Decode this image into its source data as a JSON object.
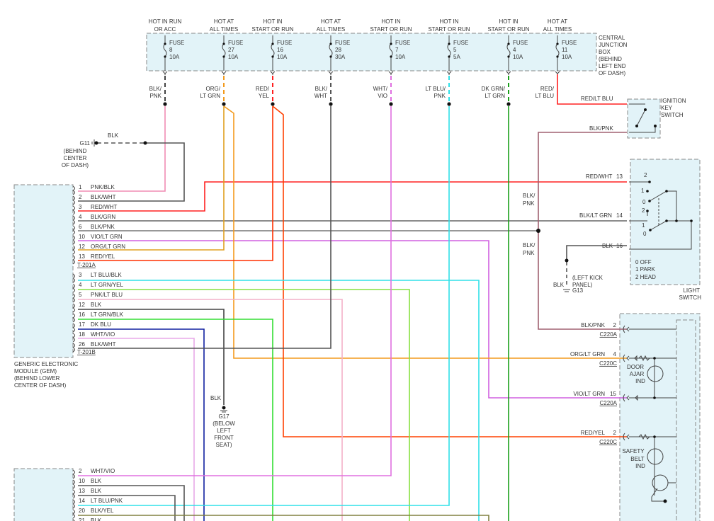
{
  "fuses": [
    {
      "header": [
        "HOT IN RUN",
        "OR ACC"
      ],
      "label": "FUSE",
      "num": "8",
      "amps": "10A",
      "wire": [
        "BLK/",
        "PNK"
      ],
      "color": "#444444"
    },
    {
      "header": [
        "HOT AT",
        "ALL TIMES"
      ],
      "label": "FUSE",
      "num": "27",
      "amps": "10A",
      "wire": [
        "ORG/",
        "LT GRN"
      ],
      "color": "#f39a1d"
    },
    {
      "header": [
        "HOT IN",
        "START OR RUN"
      ],
      "label": "FUSE",
      "num": "16",
      "amps": "10A",
      "wire": [
        "RED/",
        "YEL"
      ],
      "color": "#ff2020"
    },
    {
      "header": [
        "HOT AT",
        "ALL TIMES"
      ],
      "label": "FUSE",
      "num": "28",
      "amps": "30A",
      "wire": [
        "BLK/",
        "WHT"
      ],
      "color": "#555555"
    },
    {
      "header": [
        "HOT IN",
        "START OR RUN"
      ],
      "label": "FUSE",
      "num": "7",
      "amps": "10A",
      "wire": [
        "WHT/",
        "VIO"
      ],
      "color": "#e070e0"
    },
    {
      "header": [
        "HOT IN",
        "START OR RUN"
      ],
      "label": "FUSE",
      "num": "5",
      "amps": "5A",
      "wire": [
        "LT BLU/",
        "PNK"
      ],
      "color": "#30e0e8"
    },
    {
      "header": [
        "HOT IN",
        "START OR RUN"
      ],
      "label": "FUSE",
      "num": "4",
      "amps": "10A",
      "wire": [
        "DK GRN/",
        "LT GRN"
      ],
      "color": "#1aa01a"
    },
    {
      "header": [
        "HOT AT",
        "ALL TIMES"
      ],
      "label": "FUSE",
      "num": "11",
      "amps": "10A",
      "wire": [
        "RED/",
        "LT BLU"
      ],
      "color": "#ff2020"
    }
  ],
  "central_junction_box": [
    "CENTRAL",
    "JUNCTION",
    "BOX",
    "(BEHIND",
    "LEFT END",
    "OF DASH)"
  ],
  "ground_g11": {
    "wire": "BLK",
    "id": "G11",
    "location": [
      "(BEHIND",
      "CENTER",
      "OF DASH)"
    ]
  },
  "gem": {
    "name": [
      "GENERIC ELECTRONIC",
      "MODULE (GEM)",
      "(BEHIND LOWER",
      "CENTER OF DASH)"
    ],
    "connector_a": "T-201A",
    "connector_b": "T-201B",
    "pins_a": [
      {
        "pin": "1",
        "wire": "PNK/BLK"
      },
      {
        "pin": "2",
        "wire": "BLK/WHT"
      },
      {
        "pin": "3",
        "wire": "RED/WHT"
      },
      {
        "pin": "4",
        "wire": "BLK/GRN"
      },
      {
        "pin": "6",
        "wire": "BLK/PNK"
      },
      {
        "pin": "10",
        "wire": "VIO/LT GRN"
      },
      {
        "pin": "12",
        "wire": "ORG/LT GRN"
      },
      {
        "pin": "13",
        "wire": "RED/YEL"
      }
    ],
    "pins_b": [
      {
        "pin": "3",
        "wire": "LT BLU/BLK"
      },
      {
        "pin": "4",
        "wire": "LT GRN/YEL"
      },
      {
        "pin": "5",
        "wire": "PNK/LT BLU"
      },
      {
        "pin": "12",
        "wire": "BLK"
      },
      {
        "pin": "16",
        "wire": "LT GRN/BLK"
      },
      {
        "pin": "17",
        "wire": "DK BLU"
      },
      {
        "pin": "18",
        "wire": "WHT/VIO"
      },
      {
        "pin": "26",
        "wire": "BLK/WHT"
      }
    ],
    "pins_lower": [
      {
        "pin": "2",
        "wire": "WHT/VIO"
      },
      {
        "pin": "10",
        "wire": "BLK"
      },
      {
        "pin": "13",
        "wire": "BLK"
      },
      {
        "pin": "14",
        "wire": "LT BLU/PNK"
      },
      {
        "pin": "20",
        "wire": "BLK/YEL"
      },
      {
        "pin": "21",
        "wire": "BLK"
      }
    ]
  },
  "ground_g17": {
    "wire": "BLK",
    "id": "G17",
    "location": [
      "(BELOW",
      "LEFT",
      "FRONT",
      "SEAT)"
    ]
  },
  "ignition_switch": {
    "name": [
      "IGNITION",
      "KEY",
      "SWITCH"
    ],
    "wire_in": "RED/LT BLU",
    "wire_out": "BLK/PNK"
  },
  "splice_labels": {
    "upper": [
      "BLK/",
      "PNK"
    ],
    "lower": [
      "BLK/",
      "PNK"
    ]
  },
  "light_switch": {
    "name": [
      "LIGHT",
      "SWITCH"
    ],
    "pins": [
      {
        "wire": "RED/WHT",
        "pin": "13"
      },
      {
        "wire": "BLK/LT GRN",
        "pin": "14"
      },
      {
        "wire": "BLK",
        "pin": "16"
      }
    ],
    "positions_upper": [
      "2",
      "1",
      "0"
    ],
    "positions_lower": [
      "2",
      "1",
      "0"
    ],
    "legend": [
      "0 OFF",
      "1 PARK",
      "2 HEAD"
    ]
  },
  "ground_g13": {
    "wire": "BLK",
    "id": "G13",
    "location": [
      "(LEFT KICK",
      "PANEL)"
    ]
  },
  "cluster": {
    "pins": [
      {
        "wire": "BLK/PNK",
        "pin": "2",
        "connector": "C220A"
      },
      {
        "wire": "ORG/LT GRN",
        "pin": "4",
        "connector": "C220C"
      },
      {
        "wire": "VIO/LT GRN",
        "pin": "15",
        "connector": "C220A"
      },
      {
        "wire": "RED/YEL",
        "pin": "2",
        "connector": "C220C"
      }
    ],
    "door_ajar": [
      "DOOR",
      "AJAR",
      "IND"
    ],
    "safety_belt": [
      "SAFETY",
      "BELT",
      "IND"
    ]
  },
  "colors": {
    "blk": "#444444",
    "pnk": "#f08cb4",
    "org": "#f39a1d",
    "red": "#ff2020",
    "vio": "#d060e0",
    "lt_grn": "#66dd44",
    "lt_blu": "#30e0e8",
    "dk_blu": "#1020a0",
    "dk_grn": "#1aa01a",
    "box_fill": "#e2f3f8"
  }
}
